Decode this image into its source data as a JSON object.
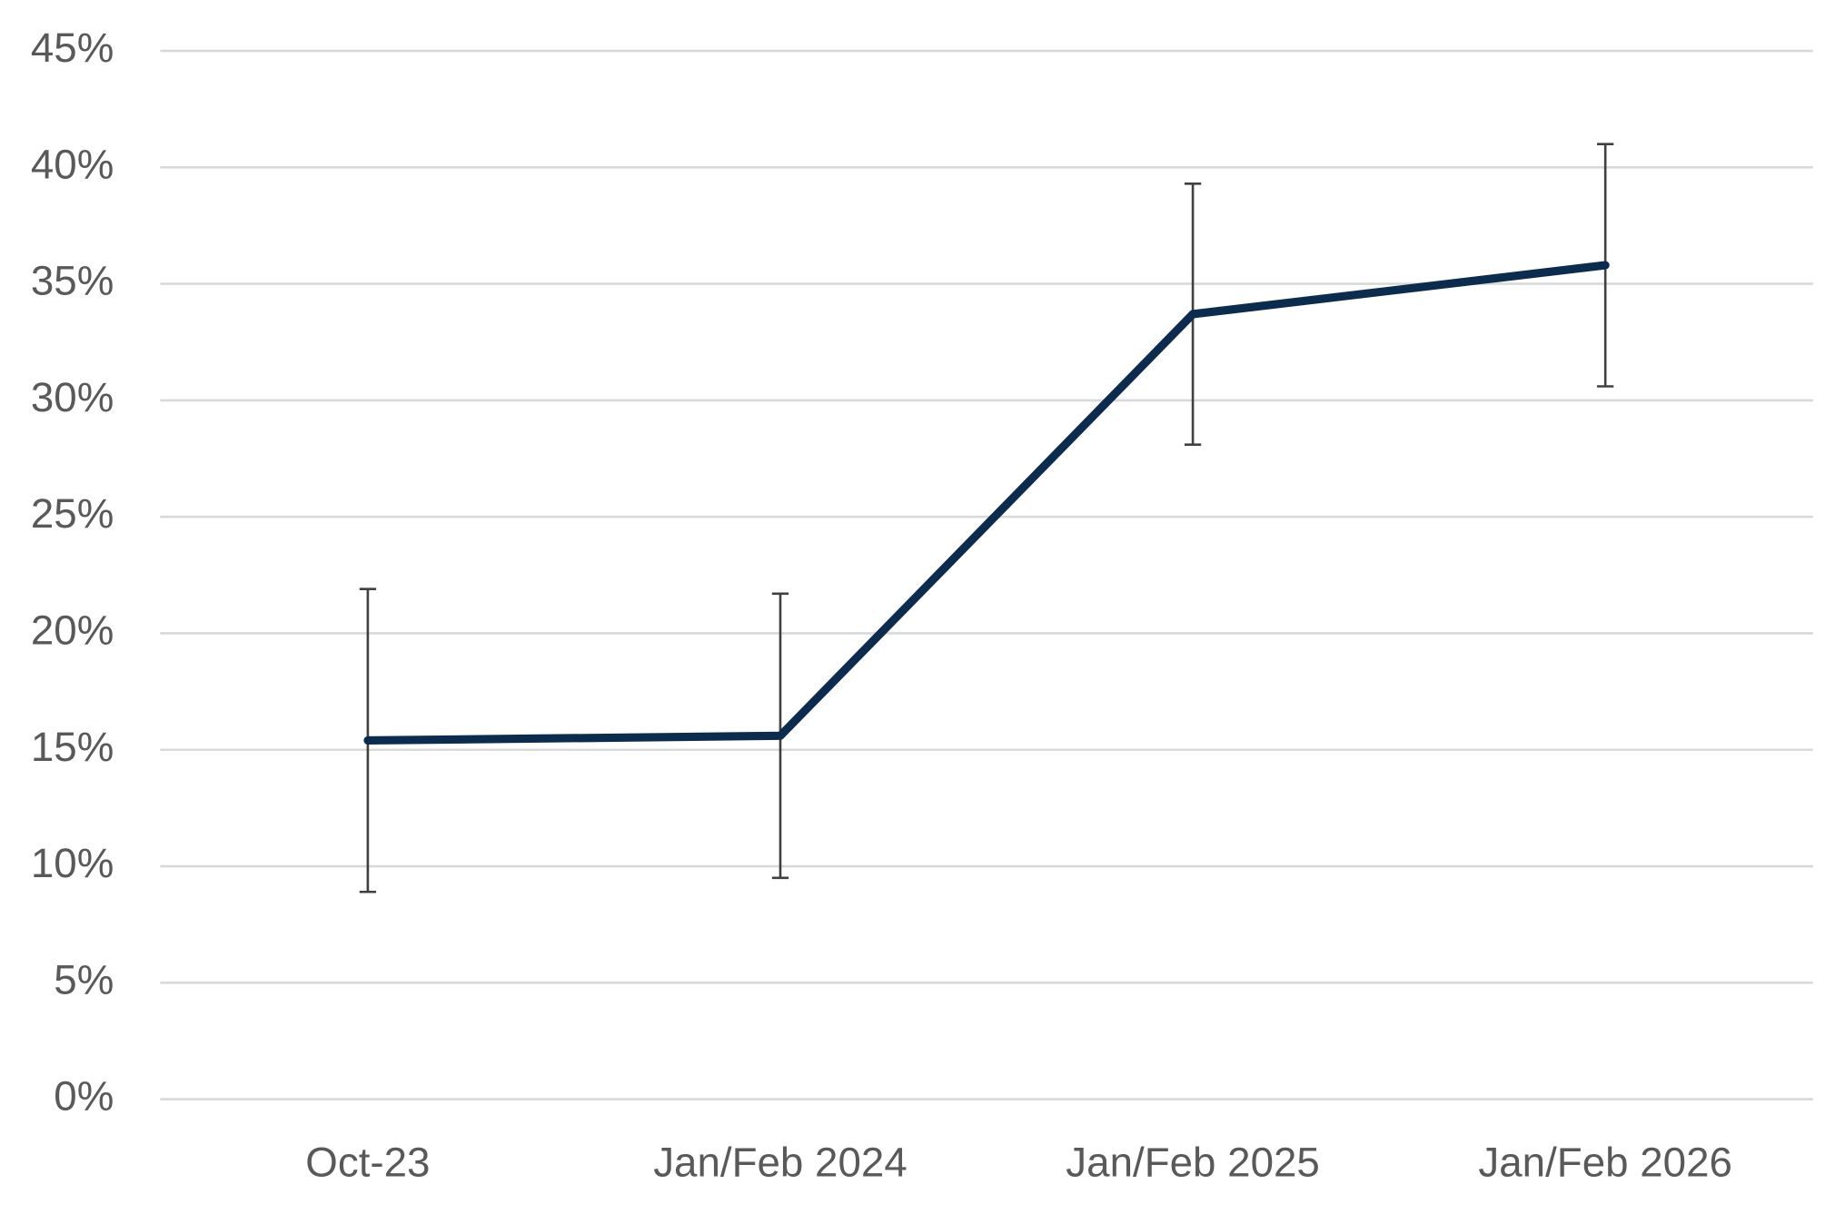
{
  "chart_data": {
    "type": "line",
    "categories": [
      "Oct-23",
      "Jan/Feb 2024",
      "Jan/Feb 2025",
      "Jan/Feb 2026"
    ],
    "values": [
      15.4,
      15.6,
      33.7,
      35.8
    ],
    "errors": [
      6.5,
      6.1,
      5.6,
      5.2
    ],
    "color": "#0b2c4f",
    "error_color": "#404040",
    "ylim": [
      0,
      45
    ],
    "yticks": [
      {
        "value": 0,
        "label": "0%"
      },
      {
        "value": 5,
        "label": "5%"
      },
      {
        "value": 10,
        "label": "10%"
      },
      {
        "value": 15,
        "label": "15%"
      },
      {
        "value": 20,
        "label": "20%"
      },
      {
        "value": 25,
        "label": "25%"
      },
      {
        "value": 30,
        "label": "30%"
      },
      {
        "value": 35,
        "label": "35%"
      },
      {
        "value": 40,
        "label": "40%"
      },
      {
        "value": 45,
        "label": "45%"
      }
    ],
    "grid": true
  }
}
